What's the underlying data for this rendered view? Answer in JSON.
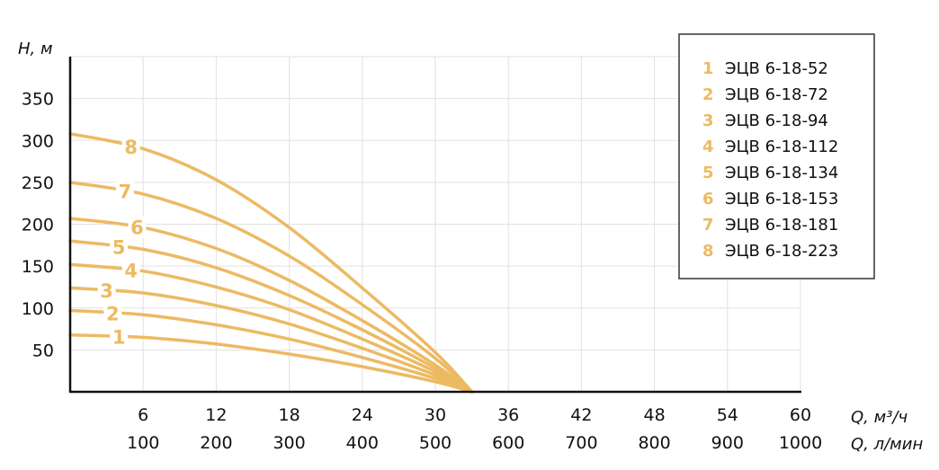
{
  "chart_data": {
    "type": "line",
    "colors": {
      "curve": "#ecba63",
      "grid": "#e2e2e2",
      "axis": "#111111",
      "legend_border": "#333333"
    },
    "grid": true,
    "legend_position": "top-right",
    "y_axis": {
      "label": "H, м",
      "ticks": [
        50,
        100,
        150,
        200,
        250,
        300,
        350
      ],
      "range": [
        0,
        400
      ]
    },
    "x_axis": {
      "label": "Q, м³/ч",
      "ticks": [
        6,
        12,
        18,
        24,
        30,
        36,
        42,
        48,
        54,
        60
      ],
      "range": [
        0,
        60
      ]
    },
    "x2_axis": {
      "label": "Q, л/мин",
      "ticks": [
        100,
        200,
        300,
        400,
        500,
        600,
        700,
        800,
        900,
        1000
      ]
    },
    "series": [
      {
        "id": "1",
        "name": "ЭЦВ 6-18-52",
        "label": "1",
        "x": [
          0,
          6,
          12,
          18,
          24,
          30,
          33
        ],
        "y": [
          68,
          65,
          57,
          45,
          30,
          12,
          0
        ]
      },
      {
        "id": "2",
        "name": "ЭЦВ 6-18-72",
        "label": "2",
        "x": [
          0,
          6,
          12,
          18,
          24,
          30,
          33
        ],
        "y": [
          97,
          92,
          80,
          63,
          41,
          16,
          0
        ]
      },
      {
        "id": "3",
        "name": "ЭЦВ 6-18-94",
        "label": "3",
        "x": [
          0,
          6,
          12,
          18,
          24,
          30,
          33
        ],
        "y": [
          124,
          118,
          103,
          81,
          52,
          20,
          0
        ]
      },
      {
        "id": "4",
        "name": "ЭЦВ 6-18-112",
        "label": "4",
        "x": [
          0,
          6,
          12,
          18,
          24,
          30,
          33
        ],
        "y": [
          152,
          144,
          125,
          98,
          63,
          24,
          0
        ]
      },
      {
        "id": "5",
        "name": "ЭЦВ 6-18-134",
        "label": "5",
        "x": [
          0,
          6,
          12,
          18,
          24,
          30,
          33
        ],
        "y": [
          180,
          170,
          148,
          115,
          74,
          28,
          0
        ]
      },
      {
        "id": "6",
        "name": "ЭЦВ 6-18-153",
        "label": "6",
        "x": [
          0,
          6,
          12,
          18,
          24,
          30,
          33
        ],
        "y": [
          207,
          196,
          171,
          133,
          85,
          32,
          0
        ]
      },
      {
        "id": "7",
        "name": "ЭЦВ 6-18-181",
        "label": "7",
        "x": [
          0,
          6,
          12,
          18,
          24,
          30,
          33
        ],
        "y": [
          250,
          236,
          207,
          162,
          104,
          40,
          0
        ]
      },
      {
        "id": "8",
        "name": "ЭЦВ 6-18-223",
        "label": "8",
        "x": [
          0,
          6,
          12,
          18,
          24,
          30,
          33
        ],
        "y": [
          308,
          290,
          253,
          196,
          124,
          47,
          0
        ]
      }
    ]
  }
}
